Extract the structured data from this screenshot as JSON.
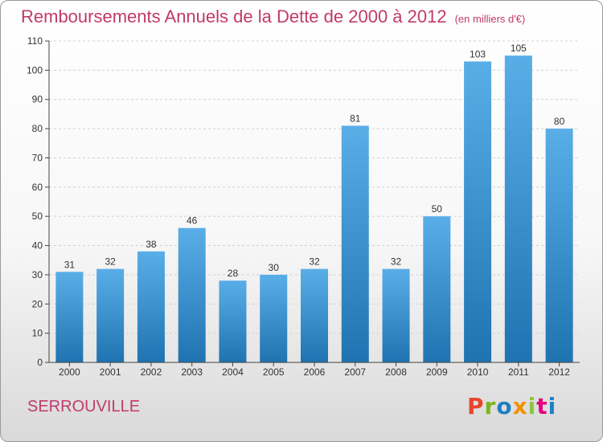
{
  "header": {
    "title": "Remboursements Annuels de la Dette de 2000 à 2012",
    "subtitle": "(en milliers d'€)"
  },
  "footer": {
    "location": "SERROUVILLE",
    "logo_text": "Proxiti",
    "logo_colors": [
      "#e8452c",
      "#7ab51d",
      "#1e7fc2",
      "#f29100",
      "#8cc63f",
      "#e5007e",
      "#1e7fc2"
    ]
  },
  "colors": {
    "bar_top": "#5aaee8",
    "bar_bottom": "#1f73b0",
    "grid": "#d0d0d0",
    "title": "#c03a6b"
  },
  "chart_data": {
    "type": "bar",
    "title": "Remboursements Annuels de la Dette de 2000 à 2012",
    "categories": [
      "2000",
      "2001",
      "2002",
      "2003",
      "2004",
      "2005",
      "2006",
      "2007",
      "2008",
      "2009",
      "2010",
      "2011",
      "2012"
    ],
    "values": [
      31,
      32,
      38,
      46,
      28,
      30,
      32,
      81,
      32,
      50,
      103,
      105,
      80
    ],
    "xlabel": "",
    "ylabel": "",
    "ylim": [
      0,
      110
    ],
    "yticks": [
      0,
      10,
      20,
      30,
      40,
      50,
      60,
      70,
      80,
      90,
      100,
      110
    ],
    "grid": true,
    "data_labels": true
  }
}
